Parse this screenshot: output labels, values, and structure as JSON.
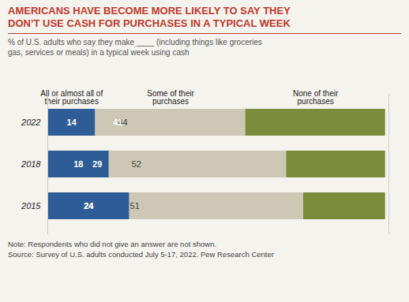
{
  "chart_data": {
    "type": "bar",
    "orientation": "horizontal",
    "stacked": true,
    "title": "AMERICANS HAVE BECOME MORE LIKELY TO SAY THEY\nDON’T USE CASH FOR PURCHASES IN A TYPICAL WEEK",
    "subtitle": "% of U.S. adults who say they make ____ (including things like groceries\ngas, services or meals) in a typical week using cash",
    "note": "Note: Respondents who did not give an answer are not shown.",
    "source": "Source: Survey of U.S. adults conducted July 5-17, 2022.  Pew Research Center",
    "categories": [
      "2022",
      "2018",
      "2015"
    ],
    "series": [
      {
        "name": "All or almost all of their purchases",
        "color": "#2e5c96",
        "values": [
          14,
          18,
          24
        ]
      },
      {
        "name": "Some of their purchases",
        "color": "#ccc8b5",
        "values": [
          44,
          52,
          51
        ]
      },
      {
        "name": "None of their purchases",
        "color": "#7b8c3a",
        "values": [
          41,
          29,
          24
        ]
      }
    ],
    "xlim": [
      0,
      100
    ],
    "data_labels": true,
    "legend": "top",
    "tick_labels": "y",
    "grid": false
  }
}
